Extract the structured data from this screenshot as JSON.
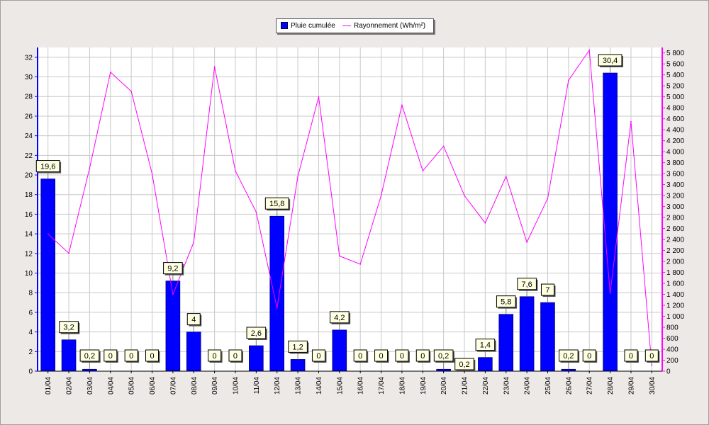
{
  "chart_data": {
    "type": "bar",
    "categories": [
      "01/04",
      "02/04",
      "03/04",
      "04/04",
      "05/04",
      "06/04",
      "07/04",
      "08/04",
      "09/04",
      "10/04",
      "11/04",
      "12/04",
      "13/04",
      "14/04",
      "15/04",
      "16/04",
      "17/04",
      "18/04",
      "19/04",
      "20/04",
      "21/04",
      "22/04",
      "23/04",
      "24/04",
      "25/04",
      "26/04",
      "27/04",
      "28/04",
      "29/04",
      "30/04"
    ],
    "series": [
      {
        "name": "Pluie cumulée",
        "type": "bar",
        "axis": "left",
        "color": "#0000FF",
        "values": [
          19.6,
          3.2,
          0.2,
          0,
          0,
          0,
          9.2,
          4,
          0,
          0,
          2.6,
          15.8,
          1.2,
          0,
          4.2,
          0,
          0,
          0,
          0,
          0.2,
          0.2,
          1.4,
          5.8,
          7.6,
          7,
          0.2,
          0,
          30.4,
          0,
          0
        ],
        "labels": [
          "19,6",
          "3,2",
          "0,2",
          "0",
          "0",
          "0",
          "9,2",
          "4",
          "0",
          "0",
          "2,6",
          "15,8",
          "1,2",
          "0",
          "4,2",
          "0",
          "0",
          "0",
          "0",
          "0,2",
          "0,2",
          "1,4",
          "5,8",
          "7,6",
          "7",
          "0,2",
          "0",
          "30,4",
          "0",
          "0"
        ]
      },
      {
        "name": "Rayonnement (Wh/m²)",
        "type": "line",
        "axis": "right",
        "color": "#FF00FF",
        "values": [
          2500,
          2150,
          3700,
          5450,
          5100,
          3600,
          1400,
          2350,
          5550,
          3650,
          2900,
          1150,
          3550,
          5000,
          2100,
          1950,
          3200,
          4850,
          3650,
          4100,
          3200,
          2700,
          3550,
          2350,
          3150,
          5300,
          5850,
          1420,
          4550,
          100
        ]
      }
    ],
    "left_axis": {
      "ylim": [
        0,
        33
      ],
      "ticks": [
        0,
        2,
        4,
        6,
        8,
        10,
        12,
        14,
        16,
        18,
        20,
        22,
        24,
        26,
        28,
        30,
        32
      ]
    },
    "right_axis": {
      "ylim": [
        0,
        5900
      ],
      "ticks": [
        0,
        200,
        400,
        600,
        800,
        1000,
        1200,
        1400,
        1600,
        1800,
        2000,
        2200,
        2400,
        2600,
        2800,
        3000,
        3200,
        3400,
        3600,
        3800,
        4000,
        4200,
        4400,
        4600,
        4800,
        5000,
        5200,
        5400,
        5600,
        5800
      ]
    },
    "grid": true,
    "legend_position": "top-center"
  }
}
